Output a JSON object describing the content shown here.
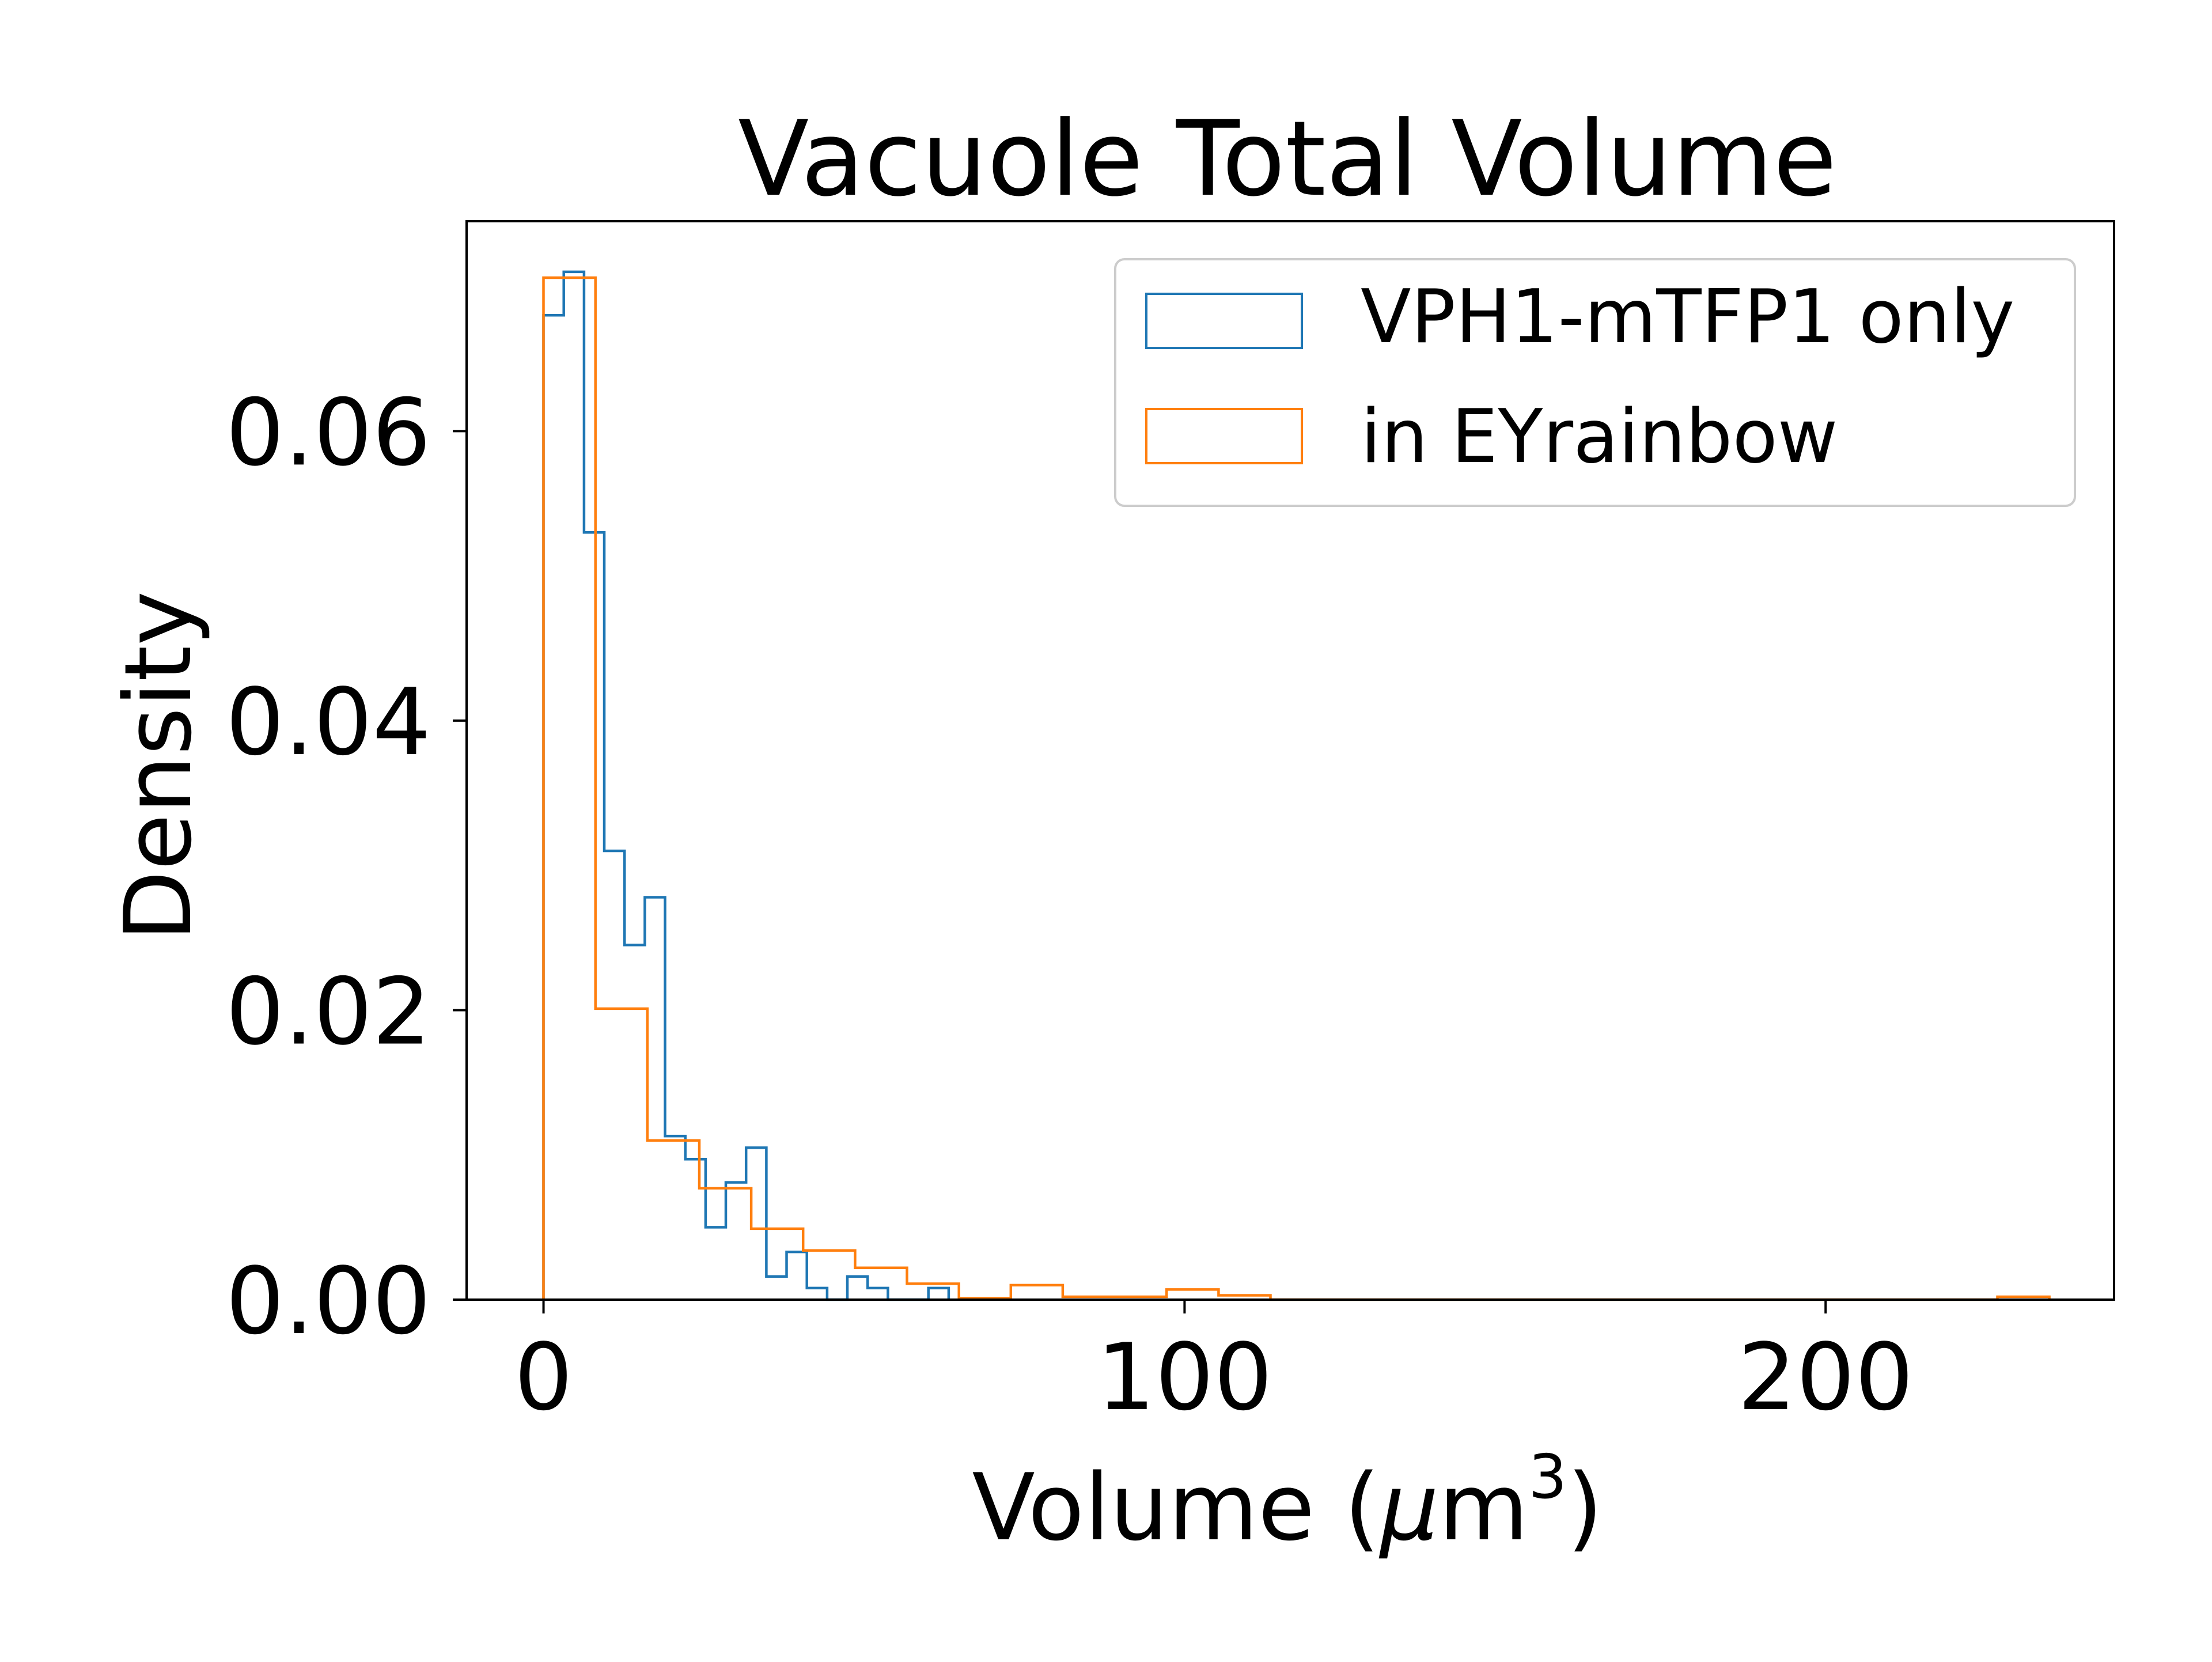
{
  "chart_data": {
    "type": "histogram",
    "title": "Vacuole Total Volume",
    "xlabel": "Volume (μm³)",
    "xlabel_parts": {
      "prefix": "Volume (",
      "mu": "μ",
      "unit": "m",
      "sup": "3",
      "suffix": ")"
    },
    "ylabel": "Density",
    "xlim": [
      -12,
      245
    ],
    "ylim": [
      0,
      0.0745
    ],
    "xticks": [
      0,
      100,
      200
    ],
    "xtick_labels": [
      "0",
      "100",
      "200"
    ],
    "yticks": [
      0,
      0.02,
      0.04,
      0.06
    ],
    "ytick_labels": [
      "0.00",
      "0.02",
      "0.04",
      "0.06"
    ],
    "grid": false,
    "legend_position": "top-right",
    "series": [
      {
        "name": "VPH1-mTFP1 only",
        "color": "#1f77b4",
        "histtype": "step",
        "edges": [
          0,
          3.16,
          6.32,
          9.48,
          12.64,
          15.8,
          18.96,
          22.12,
          25.28,
          28.44,
          31.6,
          34.76,
          37.92,
          41.08,
          44.24,
          47.4,
          50.56,
          53.72,
          56.88,
          60.04,
          63.2
        ],
        "densities": [
          0.068,
          0.071,
          0.053,
          0.031,
          0.0245,
          0.0278,
          0.0113,
          0.0097,
          0.005,
          0.0081,
          0.0105,
          0.0016,
          0.0033,
          0.0008,
          0,
          0.0016,
          0.0008,
          0,
          0,
          0.0008
        ]
      },
      {
        "name": "in EYrainbow",
        "color": "#ff7f0e",
        "histtype": "step",
        "edges": [
          0,
          8.1,
          16.2,
          24.3,
          32.4,
          40.5,
          48.6,
          56.7,
          64.8,
          72.9,
          81,
          89.1,
          97.2,
          105.3,
          113.4,
          121.5,
          129.6,
          137.7,
          145.8,
          153.9,
          162,
          170.1,
          178.2,
          186.3,
          194.4,
          202.5,
          210.6,
          218.7,
          226.8,
          234.9
        ],
        "densities": [
          0.0706,
          0.0201,
          0.011,
          0.0077,
          0.0049,
          0.0034,
          0.0022,
          0.0011,
          0.0001,
          0.001,
          0.0002,
          0.0002,
          0.0007,
          0.0003,
          0,
          0,
          0,
          0,
          0,
          0,
          0,
          0,
          0,
          0,
          0,
          0,
          0,
          0,
          0.0002
        ]
      }
    ]
  }
}
